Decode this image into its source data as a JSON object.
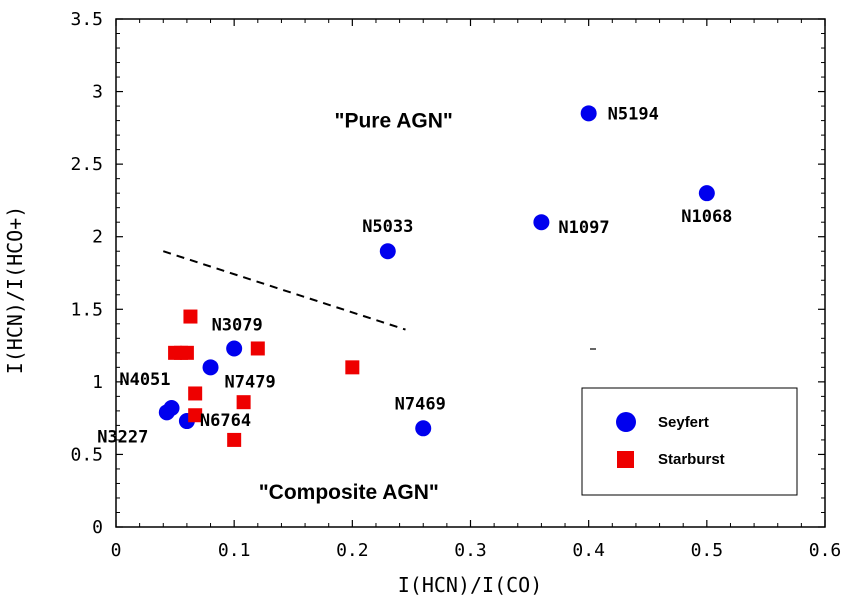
{
  "chart_data": {
    "type": "scatter",
    "xlabel": "I(HCN)/I(CO)",
    "ylabel": "I(HCN)/I(HCO+)",
    "xlim": [
      0,
      0.6
    ],
    "ylim": [
      0,
      3.5
    ],
    "x_ticks": [
      "0",
      "0.1",
      "0.2",
      "0.3",
      "0.4",
      "0.5",
      "0.6"
    ],
    "y_ticks": [
      "0",
      "0.5",
      "1",
      "1.5",
      "2",
      "2.5",
      "3",
      "3.5"
    ],
    "grid": false,
    "legend_position": "bottom-right",
    "series": [
      {
        "name": "Seyfert",
        "marker": "circle",
        "color": "#0000ee",
        "points": [
          {
            "x": 0.4,
            "y": 2.85,
            "label": "N5194"
          },
          {
            "x": 0.5,
            "y": 2.3,
            "label": "N1068"
          },
          {
            "x": 0.36,
            "y": 2.1,
            "label": "N1097"
          },
          {
            "x": 0.23,
            "y": 1.9,
            "label": "N5033"
          },
          {
            "x": 0.1,
            "y": 1.23,
            "label": "N3079"
          },
          {
            "x": 0.08,
            "y": 1.1,
            "label": "N7479"
          },
          {
            "x": 0.26,
            "y": 0.68,
            "label": "N7469"
          },
          {
            "x": 0.047,
            "y": 0.82,
            "label": "N4051"
          },
          {
            "x": 0.043,
            "y": 0.79,
            "label": "N3227"
          },
          {
            "x": 0.06,
            "y": 0.73,
            "label": "N6764"
          }
        ]
      },
      {
        "name": "Starburst",
        "marker": "square",
        "color": "#ee0000",
        "points": [
          {
            "x": 0.063,
            "y": 1.45
          },
          {
            "x": 0.05,
            "y": 1.2
          },
          {
            "x": 0.055,
            "y": 1.2
          },
          {
            "x": 0.06,
            "y": 1.2
          },
          {
            "x": 0.12,
            "y": 1.23
          },
          {
            "x": 0.2,
            "y": 1.1
          },
          {
            "x": 0.067,
            "y": 0.92
          },
          {
            "x": 0.108,
            "y": 0.86
          },
          {
            "x": 0.067,
            "y": 0.77
          },
          {
            "x": 0.1,
            "y": 0.6
          }
        ]
      }
    ],
    "annotations": {
      "pure_agn": {
        "text": "\"Pure AGN\"",
        "x": 0.235,
        "y": 2.8
      },
      "composite_agn": {
        "text": "\"Composite AGN\"",
        "x": 0.197,
        "y": 0.24
      },
      "dashed_line": {
        "x": [
          0.04,
          0.245
        ],
        "y": [
          1.9,
          1.36
        ]
      }
    }
  }
}
